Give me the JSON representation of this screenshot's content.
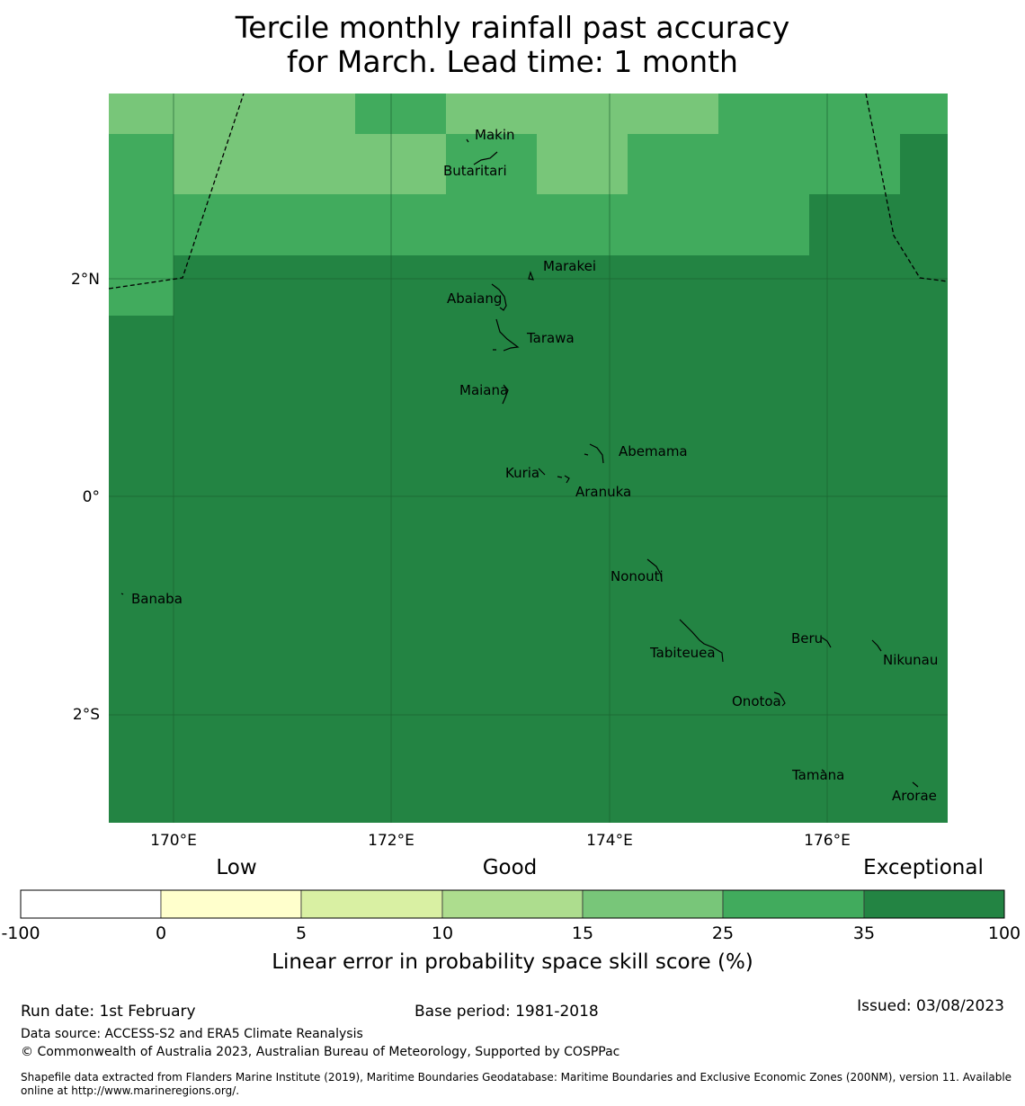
{
  "title": {
    "line1": "Tercile monthly rainfall past accuracy",
    "line2": "for March. Lead time: 1 month"
  },
  "map": {
    "lat_ticks": [
      "2°N",
      "0°",
      "2°S"
    ],
    "lon_ticks": [
      "170°E",
      "172°E",
      "174°E",
      "176°E"
    ],
    "islands": [
      "Makin",
      "Butaritari",
      "Marakei",
      "Abaiang",
      "Tarawa",
      "Maiana",
      "Abemama",
      "Kuria",
      "Aranuka",
      "Nonouti",
      "Banaba",
      "Beru",
      "Nikunau",
      "Tabiteuea",
      "Onotoa",
      "Tamana",
      "Arorae"
    ]
  },
  "legend": {
    "categories": [
      "Low",
      "Good",
      "Exceptional"
    ],
    "tick_labels": [
      "-100",
      "0",
      "5",
      "10",
      "15",
      "25",
      "35",
      "100"
    ],
    "colors": [
      "#ffffff",
      "#ffffcc",
      "#d9f0a3",
      "#addd8e",
      "#78c679",
      "#41ab5d",
      "#238443"
    ],
    "label": "Linear error in probability space skill score (%)"
  },
  "footer": {
    "run_date": "Run date: 1st February",
    "base_period": "Base period: 1981-2018",
    "issued": "Issued: 03/08/2023",
    "data_source": "Data source: ACCESS-S2 and ERA5 Climate Reanalysis",
    "copyright": "© Commonwealth of Australia 2023, Australian Bureau of Meteorology, Supported by COSPPac",
    "shapefile": "Shapefile data extracted from Flanders Marine Institute (2019), Maritime Boundaries Geodatabase: Maritime Boundaries and Exclusive Economic Zones (200NM), version 11. Available online at http://www.marineregions.org/."
  }
}
